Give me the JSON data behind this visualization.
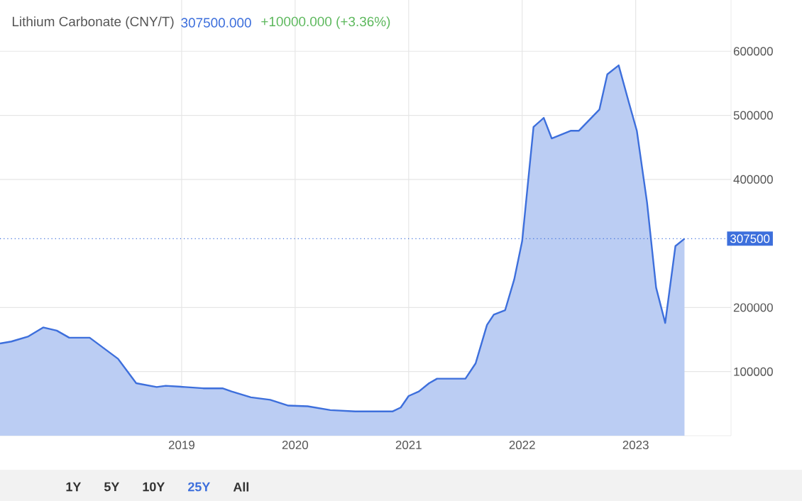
{
  "chart_data": {
    "type": "area",
    "title": "Lithium Carbonate (CNY/T)",
    "annotations": [
      "307500.000",
      "+10000.000 (+3.36%)",
      "1Y",
      "5Y",
      "10Y",
      "25Y",
      "All"
    ],
    "x": [
      2017.4,
      2017.5,
      2017.65,
      2017.78,
      2017.9,
      2018.01,
      2018.19,
      2018.44,
      2018.6,
      2018.78,
      2018.86,
      2019.03,
      2019.19,
      2019.36,
      2019.44,
      2019.61,
      2019.78,
      2019.94,
      2020.11,
      2020.31,
      2020.53,
      2020.86,
      2020.93,
      2021.0,
      2021.09,
      2021.18,
      2021.25,
      2021.5,
      2021.59,
      2021.69,
      2021.75,
      2021.85,
      2021.93,
      2022.0,
      2022.1,
      2022.19,
      2022.26,
      2022.43,
      2022.5,
      2022.68,
      2022.75,
      2022.85,
      2022.94,
      2023.01,
      2023.1,
      2023.18,
      2023.26,
      2023.35,
      2023.43
    ],
    "series": [
      {
        "color": "#3d6fdc",
        "values": [
          144000,
          147000,
          155000,
          169000,
          164000,
          153000,
          153000,
          120000,
          82000,
          76000,
          78000,
          76000,
          74000,
          74000,
          69000,
          60000,
          56000,
          47000,
          46000,
          40000,
          38000,
          38000,
          44000,
          62000,
          69000,
          82000,
          89000,
          89000,
          113000,
          173000,
          189000,
          196000,
          244000,
          304000,
          482000,
          496000,
          464000,
          476000,
          476000,
          509000,
          564000,
          578000,
          520000,
          476000,
          364000,
          231000,
          176000,
          296000,
          307500
        ]
      }
    ],
    "xlim": [
      2017.4,
      2023.84
    ],
    "ylim": [
      0,
      680000
    ],
    "xticks": [
      2019,
      2020,
      2021,
      2022,
      2023
    ],
    "yticks": [
      100000,
      200000,
      400000,
      500000,
      600000
    ],
    "ref_lines": [
      {
        "axis": "y",
        "value": 307500,
        "label": "307500",
        "color": "#3d6fdc",
        "line_style": "dotted"
      }
    ],
    "grid": true,
    "marker": "none",
    "line_style": "solid"
  }
}
